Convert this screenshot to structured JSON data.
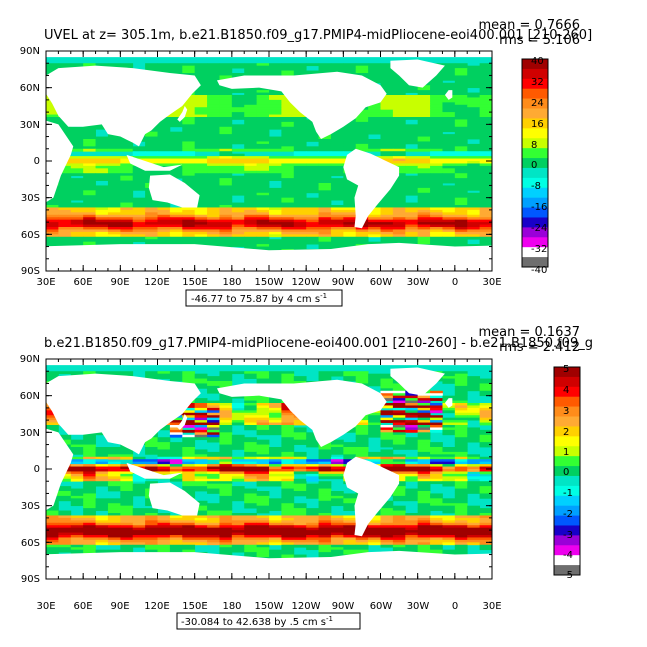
{
  "panels": [
    {
      "title": "UVEL at z= 305.1m, b.e21.B1850.f09_g17.PMIP4-midPliocene-eoi400.001 [210-260]",
      "mean_label": "mean = 0.7666",
      "rms_label": "rms = 5.106",
      "range_note": "-46.77 to 75.87 by 4 cm s",
      "range_exp": "-1",
      "colorbar_labels": [
        "40",
        "32",
        "24",
        "16",
        "8",
        "0",
        "-8",
        "-16",
        "-24",
        "-32",
        "-40"
      ],
      "bands": {
        "south_core": 36,
        "south_flank": 24,
        "equator_core": 12,
        "equator_flank": 6,
        "north": 8,
        "dipole": 0
      }
    },
    {
      "title": "b.e21.B1850.f09_g17.PMIP4-midPliocene-eoi400.001 [210-260] - b.e21.B1850.f09_g",
      "mean_label": "mean = 0.1637",
      "rms_label": "rms = 2.412",
      "range_note": "-30.084 to 42.638 by .5 cm s",
      "range_exp": "-1",
      "colorbar_labels": [
        "5",
        "4",
        "3",
        "2",
        "1",
        "0",
        "-1",
        "-2",
        "-3",
        "-4",
        "-5"
      ],
      "bands": {
        "south_core": 5.5,
        "south_flank": 3.5,
        "equator_core": 4,
        "equator_flank": 2,
        "north": 3,
        "dipole": 3
      }
    }
  ],
  "lat_labels": [
    "90N",
    "60N",
    "30N",
    "0",
    "30S",
    "60S",
    "90S"
  ],
  "lon_labels": [
    "30E",
    "60E",
    "90E",
    "120E",
    "150E",
    "180",
    "150W",
    "120W",
    "90W",
    "60W",
    "30W",
    "0",
    "30E"
  ],
  "colors": {
    "land": "#ffffff",
    "ocean_background": "#00e5c5",
    "palette": [
      "#6e6e6e",
      "#ffffff",
      "#ee00ee",
      "#9a00d8",
      "#1800c8",
      "#0058ff",
      "#00a0ff",
      "#00d0ff",
      "#00ffe4",
      "#00e5c5",
      "#00d060",
      "#33ff33",
      "#c8ff00",
      "#ffff00",
      "#ffd000",
      "#ffaa33",
      "#ff8c1a",
      "#ff5a00",
      "#ff0000",
      "#d00000",
      "#a00000"
    ]
  }
}
